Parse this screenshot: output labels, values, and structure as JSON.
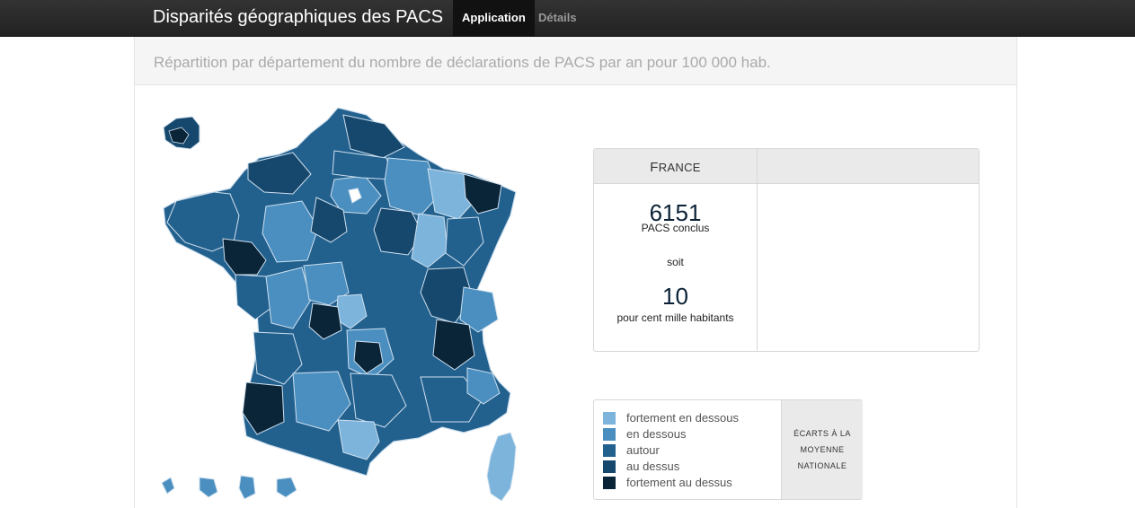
{
  "navbar": {
    "brand": "Disparités géographiques des PACS",
    "tabs": [
      {
        "label": "Application",
        "active": true
      },
      {
        "label": "Détails",
        "active": false
      }
    ]
  },
  "subtitle": "Répartition par département du nombre de déclarations de PACS par an pour 100 000 hab.",
  "stats": {
    "region": "France",
    "count": "6151",
    "count_label": "PACS conclus",
    "soit": "soit",
    "rate": "10",
    "rate_label": "pour cent mille habitants"
  },
  "legend": {
    "title_line1": "ÉCARTS À LA",
    "title_line2": "MOYENNE",
    "title_line3": "NATIONALE",
    "items": [
      {
        "label": "fortement en dessous",
        "color": "#7cb4dc"
      },
      {
        "label": "en dessous",
        "color": "#4a8fc0"
      },
      {
        "label": "autour",
        "color": "#22608e"
      },
      {
        "label": "au dessus",
        "color": "#16476c"
      },
      {
        "label": "fortement au dessus",
        "color": "#0a2438"
      }
    ]
  },
  "colors": {
    "very_low": "#7cb4dc",
    "low": "#4a8fc0",
    "average": "#22608e",
    "high": "#16476c",
    "very_high": "#0a2438",
    "navbar": "#222222"
  }
}
